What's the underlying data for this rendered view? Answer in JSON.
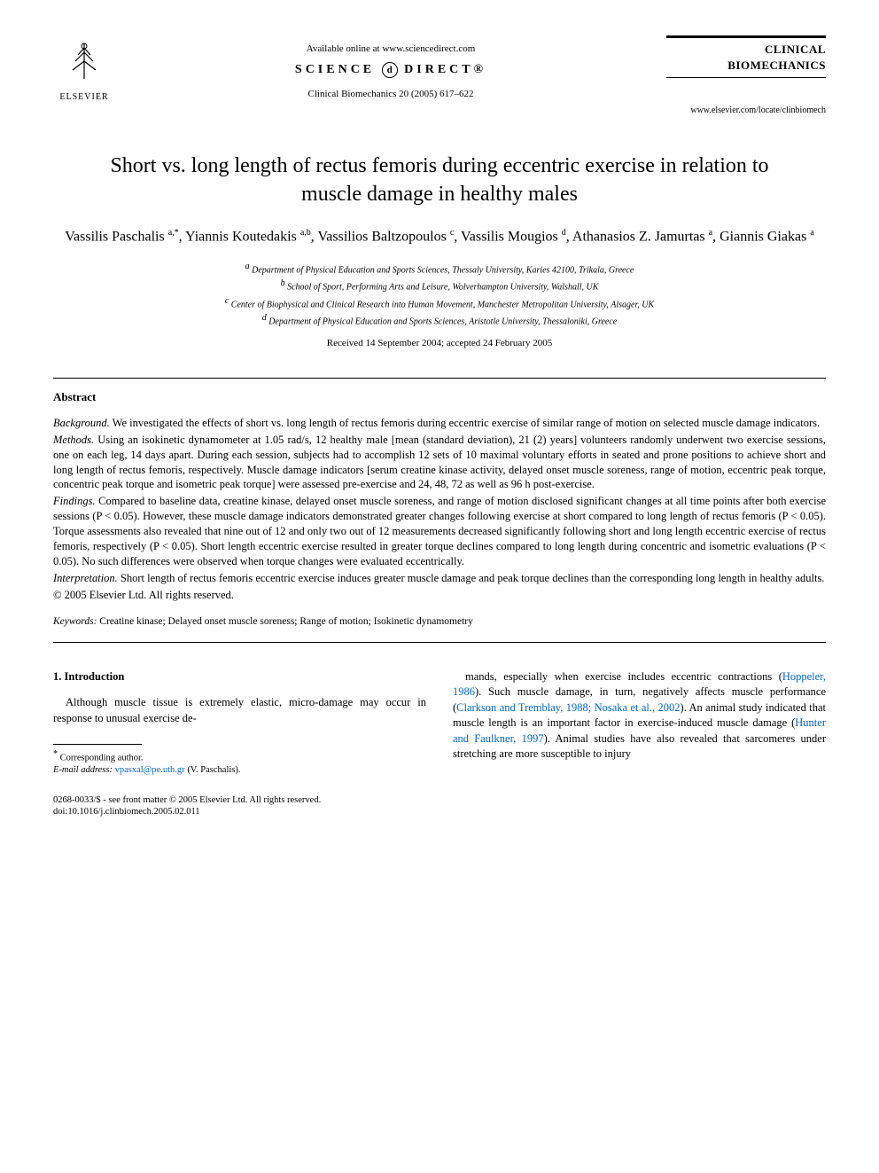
{
  "header": {
    "available_online": "Available online at www.sciencedirect.com",
    "sciencedirect_left": "SCIENCE",
    "sciencedirect_right": "DIRECT®",
    "journal_ref": "Clinical Biomechanics 20 (2005) 617–622",
    "elsevier": "ELSEVIER",
    "journal_name_line1": "CLINICAL",
    "journal_name_line2": "BIOMECHANICS",
    "journal_url": "www.elsevier.com/locate/clinbiomech"
  },
  "title": "Short vs. long length of rectus femoris during eccentric exercise in relation to muscle damage in healthy males",
  "authors_html": "Vassilis Paschalis <span class='sup'>a,*</span>, Yiannis Koutedakis <span class='sup'>a,b</span>, Vassilios Baltzopoulos <span class='sup'>c</span>, Vassilis Mougios <span class='sup'>d</span>, Athanasios Z. Jamurtas <span class='sup'>a</span>, Giannis Giakas <span class='sup'>a</span>",
  "affiliations": {
    "a": "Department of Physical Education and Sports Sciences, Thessaly University, Karies 42100, Trikala, Greece",
    "b": "School of Sport, Performing Arts and Leisure, Wolverhampton University, Walshall, UK",
    "c": "Center of Biophysical and Clinical Research into Human Movement, Manchester Metropolitan University, Alsager, UK",
    "d": "Department of Physical Education and Sports Sciences, Aristotle University, Thessaloniki, Greece"
  },
  "dates": "Received 14 September 2004; accepted 24 February 2005",
  "abstract": {
    "heading": "Abstract",
    "background_label": "Background.",
    "background": "We investigated the effects of short vs. long length of rectus femoris during eccentric exercise of similar range of motion on selected muscle damage indicators.",
    "methods_label": "Methods.",
    "methods": "Using an isokinetic dynamometer at 1.05 rad/s, 12 healthy male [mean (standard deviation), 21 (2) years] volunteers randomly underwent two exercise sessions, one on each leg, 14 days apart. During each session, subjects had to accomplish 12 sets of 10 maximal voluntary efforts in seated and prone positions to achieve short and long length of rectus femoris, respectively. Muscle damage indicators [serum creatine kinase activity, delayed onset muscle soreness, range of motion, eccentric peak torque, concentric peak torque and isometric peak torque] were assessed pre-exercise and 24, 48, 72 as well as 96 h post-exercise.",
    "findings_label": "Findings.",
    "findings": "Compared to baseline data, creatine kinase, delayed onset muscle soreness, and range of motion disclosed significant changes at all time points after both exercise sessions (P < 0.05). However, these muscle damage indicators demonstrated greater changes following exercise at short compared to long length of rectus femoris (P < 0.05). Torque assessments also revealed that nine out of 12 and only two out of 12 measurements decreased significantly following short and long length eccentric exercise of rectus femoris, respectively (P < 0.05). Short length eccentric exercise resulted in greater torque declines compared to long length during concentric and isometric evaluations (P < 0.05). No such differences were observed when torque changes were evaluated eccentrically.",
    "interpretation_label": "Interpretation.",
    "interpretation": "Short length of rectus femoris eccentric exercise induces greater muscle damage and peak torque declines than the corresponding long length in healthy adults.",
    "copyright": "© 2005 Elsevier Ltd. All rights reserved."
  },
  "keywords": {
    "label": "Keywords:",
    "text": "Creatine kinase; Delayed onset muscle soreness; Range of motion; Isokinetic dynamometry"
  },
  "intro": {
    "heading": "1. Introduction",
    "col1": "Although muscle tissue is extremely elastic, micro-damage may occur in response to unusual exercise de-",
    "col2_part1": "mands, especially when exercise includes eccentric contractions (",
    "col2_link1": "Hoppeler, 1986",
    "col2_part2": "). Such muscle damage, in turn, negatively affects muscle performance (",
    "col2_link2": "Clarkson and Tremblay, 1988; Nosaka et al., 2002",
    "col2_part3": "). An animal study indicated that muscle length is an important factor in exercise-induced muscle damage (",
    "col2_link3": "Hunter and Faulkner, 1997",
    "col2_part4": "). Animal studies have also revealed that sarcomeres under stretching are more susceptible to injury"
  },
  "footnote": {
    "corresponding": "Corresponding author.",
    "email_label": "E-mail address:",
    "email": "vpasxal@pe.uth.gr",
    "email_person": "(V. Paschalis)."
  },
  "footer": {
    "line1": "0268-0033/$ - see front matter © 2005 Elsevier Ltd. All rights reserved.",
    "line2": "doi:10.1016/j.clinbiomech.2005.02.011"
  },
  "colors": {
    "text": "#000000",
    "background": "#ffffff",
    "link": "#0066cc"
  },
  "typography": {
    "title_fontsize": 24,
    "author_fontsize": 16,
    "body_fontsize": 12.5,
    "affiliation_fontsize": 10,
    "footnote_fontsize": 10.5
  }
}
